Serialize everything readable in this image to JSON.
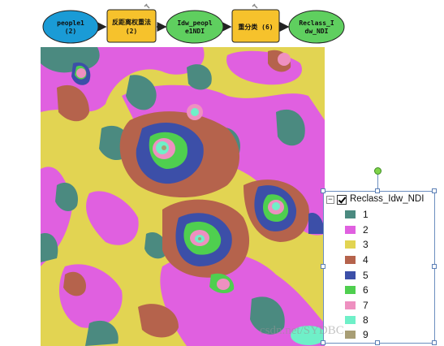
{
  "model_builder": {
    "nodes": [
      {
        "line1": "people1",
        "line2": "(2)",
        "kind": "data",
        "color": "#1a9bd6"
      },
      {
        "line1": "反距离权重法",
        "line2": "(2)",
        "kind": "tool",
        "color": "#f6c22c"
      },
      {
        "line1": "Idw_peopl",
        "line2": "e1NDI",
        "kind": "data",
        "color": "#5fcf5f"
      },
      {
        "line1": "重分类 (6)",
        "line2": "",
        "kind": "tool",
        "color": "#f6c22c"
      },
      {
        "line1": "Reclass_I",
        "line2": "dw_NDI",
        "kind": "data",
        "color": "#5fcf5f"
      }
    ]
  },
  "map": {
    "colors": {
      "c1": "#4b8a80",
      "c2": "#e060e0",
      "c3": "#e2d452",
      "c4": "#b5634c",
      "c5": "#3c4fa8",
      "c6": "#4fcf4f",
      "c7": "#ee90c0",
      "c8": "#6ff0c8",
      "c9": "#a89e75"
    }
  },
  "legend": {
    "layer_name": "Reclass_Idw_NDI",
    "expander": "−",
    "items": [
      {
        "label": "1",
        "color": "#4b8a80"
      },
      {
        "label": "2",
        "color": "#e060e0"
      },
      {
        "label": "3",
        "color": "#e2d452"
      },
      {
        "label": "4",
        "color": "#b5634c"
      },
      {
        "label": "5",
        "color": "#3c4fa8"
      },
      {
        "label": "6",
        "color": "#4fcf4f"
      },
      {
        "label": "7",
        "color": "#ee90c0"
      },
      {
        "label": "8",
        "color": "#6ff0c8"
      },
      {
        "label": "9",
        "color": "#a89e75"
      }
    ]
  },
  "watermark": "csdn.net/SYDBC"
}
